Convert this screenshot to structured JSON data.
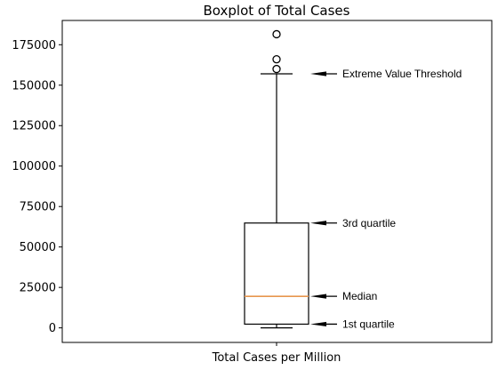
{
  "chart_data": {
    "type": "box",
    "title": "Boxplot of Total Cases",
    "xlabel": "",
    "ylabel": "",
    "categories": [
      "Total Cases per Million"
    ],
    "ylim": [
      -9000,
      190000
    ],
    "yticks": [
      0,
      25000,
      50000,
      75000,
      100000,
      125000,
      150000,
      175000
    ],
    "ytick_labels": [
      "0",
      "25000",
      "50000",
      "75000",
      "100000",
      "125000",
      "150000",
      "175000"
    ],
    "box": {
      "whisker_low": 0,
      "q1": 2300,
      "median": 19500,
      "q3": 64800,
      "whisker_high": 157000
    },
    "outliers": [
      160000,
      166000,
      181500
    ],
    "annotations": [
      {
        "text": "Extreme Value Threshold",
        "y": 157000
      },
      {
        "text": "3rd quartile",
        "y": 64800
      },
      {
        "text": "Median",
        "y": 19500
      },
      {
        "text": "1st quartile",
        "y": 2300
      }
    ],
    "colors": {
      "box": "#000000",
      "median": "#e8964f",
      "outlier": "#000000",
      "arrow": "#000000"
    },
    "grid": false,
    "legend": "none"
  }
}
